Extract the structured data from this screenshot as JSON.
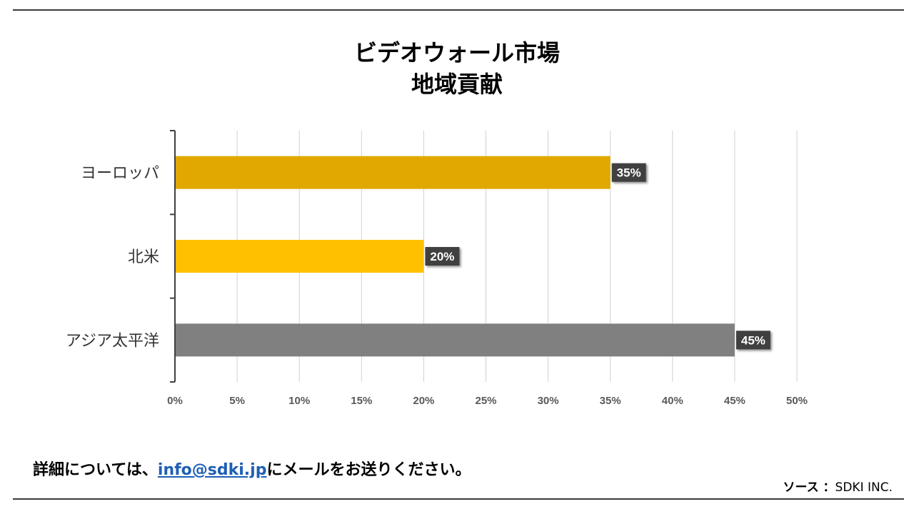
{
  "chart_data": {
    "type": "bar",
    "orientation": "horizontal",
    "title": "ビデオウォール市場",
    "subtitle": "地域貢献",
    "categories": [
      "ヨーロッパ",
      "北米",
      "アジア太平洋"
    ],
    "values": [
      35,
      20,
      45
    ],
    "data_labels": [
      "35%",
      "20%",
      "45%"
    ],
    "colors": [
      "#E0A800",
      "#FFC000",
      "#808080"
    ],
    "xlim": [
      0,
      50
    ],
    "x_ticks": [
      "0%",
      "5%",
      "10%",
      "15%",
      "20%",
      "25%",
      "30%",
      "35%",
      "40%",
      "45%",
      "50%"
    ],
    "grid": true,
    "xlabel": "",
    "ylabel": ""
  },
  "footer": {
    "contact_prefix": "詳細については、",
    "contact_email": "info@sdki.jp",
    "contact_suffix": "にメールをお送りください。",
    "source_label": "ソース ：",
    "source_value": "SDKI INC."
  }
}
